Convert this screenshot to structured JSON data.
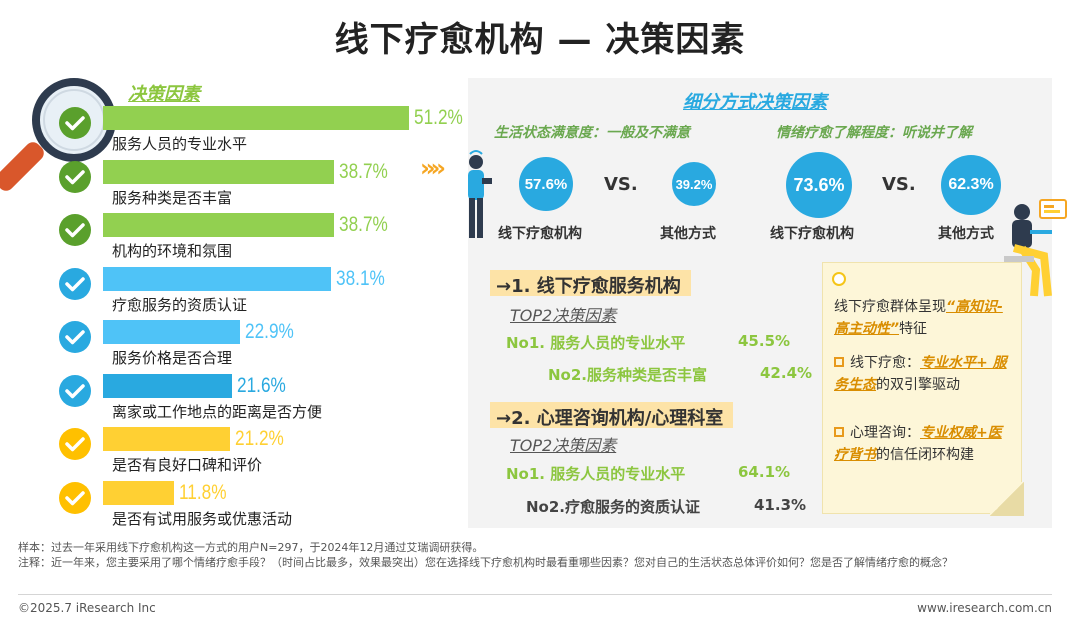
{
  "title": "线下疗愈机构 — 决策因素",
  "left_header": "决策因素",
  "chart_data": {
    "type": "bar",
    "title": "决策因素",
    "categories": [
      "服务人员的专业水平",
      "服务种类是否丰富",
      "机构的环境和氛围",
      "疗愈服务的资质认证",
      "服务价格是否合理",
      "离家或工作地点的距离是否方便",
      "是否有良好口碑和评价",
      "是否有试用服务或优惠活动"
    ],
    "values": [
      51.2,
      38.7,
      38.7,
      38.1,
      22.9,
      21.6,
      21.2,
      11.8
    ],
    "value_labels": [
      "51.2%",
      "38.7%",
      "38.7%",
      "38.1%",
      "22.9%",
      "21.6%",
      "21.2%",
      "11.8%"
    ],
    "colors": [
      "#92d050",
      "#92d050",
      "#92d050",
      "#4fc3f7",
      "#4fc3f7",
      "#29a9e0",
      "#ffd033",
      "#ffd033"
    ],
    "ylim": [
      0,
      55
    ]
  },
  "right": {
    "header": "细分方式决策因素",
    "life_satisfaction": {
      "title": "生活状态满意度：一般及不满意",
      "a_value": "57.6%",
      "a_label": "线下疗愈机构",
      "b_value": "39.2%",
      "b_label": "其他方式",
      "vs": "VS."
    },
    "awareness": {
      "title": "情绪疗愈了解程度：听说并了解",
      "a_value": "73.6%",
      "a_label": "线下疗愈机构",
      "b_value": "62.3%",
      "b_label": "其他方式",
      "vs": "VS."
    },
    "section1": {
      "heading": "→1. 线下疗愈服务机构",
      "top2": "TOP2决策因素",
      "no1_label": "No1. 服务人员的专业水平",
      "no1_value": "45.5%",
      "no2_label": "No2.服务种类是否丰富",
      "no2_value": "42.4%"
    },
    "section2": {
      "heading": "→2. 心理咨询机构/心理科室",
      "top2": "TOP2决策因素",
      "no1_label": "No1. 服务人员的专业水平",
      "no1_value": "64.1%",
      "no2_label": "No2.疗愈服务的资质认证",
      "no2_value": "41.3%"
    },
    "note": {
      "line1": "线下疗愈群体呈现",
      "emph1": "“高知识-高主动性”",
      "line1_end": "特征",
      "b1_prefix": "线下疗愈：",
      "b1_emph": "专业水平+ 服务生态",
      "b1_suffix": "的双引擎驱动",
      "b2_prefix": "心理咨询：",
      "b2_emph": "专业权威+医疗背书",
      "b2_suffix": "的信任闭环构建"
    }
  },
  "footer": {
    "sample": "样本：过去一年采用线下疗愈机构这一方式的用户N=297，于2024年12月通过艾瑞调研获得。",
    "note": "注释：近一年来，您主要采用了哪个情绪疗愈手段？（时间占比最多，效果最突出）您在选择线下疗愈机构时最看重哪些因素？您对自己的生活状态总体评价如何？您是否了解情绪疗愈的概念？",
    "copyright": "©2025.7 iResearch Inc",
    "site": "www.iresearch.com.cn"
  },
  "colors": {
    "green": "#92d050",
    "blue": "#29a9e0",
    "light_blue": "#4fc3f7",
    "yellow": "#ffd033",
    "orange": "#f5a623"
  }
}
